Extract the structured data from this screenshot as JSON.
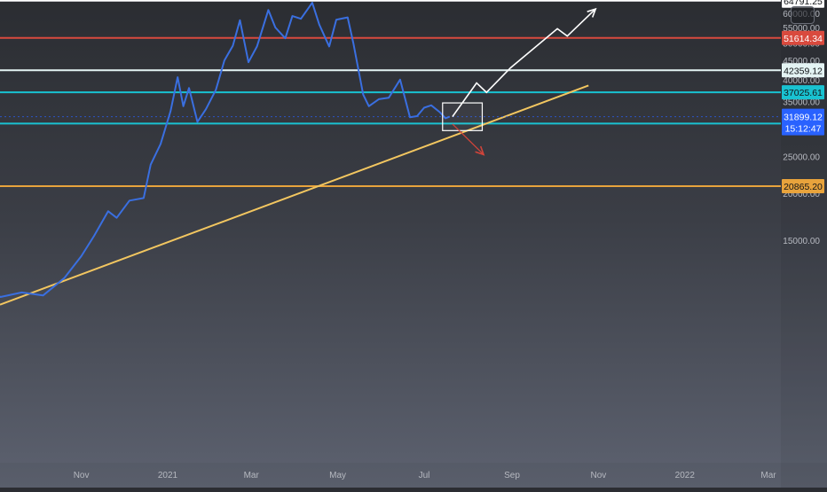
{
  "chart_data": {
    "type": "line",
    "series": [
      {
        "color": "#3a6fe0",
        "points": [
          [
            "2020-08-25",
            11200
          ],
          [
            "2020-09-05",
            10600
          ],
          [
            "2020-09-20",
            10900
          ],
          [
            "2020-10-05",
            10700
          ],
          [
            "2020-10-20",
            11900
          ],
          [
            "2020-11-01",
            13600
          ],
          [
            "2020-11-10",
            15400
          ],
          [
            "2020-11-20",
            17900
          ],
          [
            "2020-11-26",
            17200
          ],
          [
            "2020-12-05",
            19100
          ],
          [
            "2020-12-15",
            19400
          ],
          [
            "2020-12-20",
            23800
          ],
          [
            "2020-12-27",
            27000
          ],
          [
            "2021-01-03",
            33000
          ],
          [
            "2021-01-08",
            40600
          ],
          [
            "2021-01-12",
            34000
          ],
          [
            "2021-01-16",
            38000
          ],
          [
            "2021-01-22",
            30900
          ],
          [
            "2021-01-28",
            33400
          ],
          [
            "2021-02-04",
            37600
          ],
          [
            "2021-02-10",
            45000
          ],
          [
            "2021-02-16",
            49200
          ],
          [
            "2021-02-21",
            57500
          ],
          [
            "2021-02-27",
            44500
          ],
          [
            "2021-03-05",
            49000
          ],
          [
            "2021-03-13",
            61200
          ],
          [
            "2021-03-18",
            55000
          ],
          [
            "2021-03-25",
            51500
          ],
          [
            "2021-03-30",
            59000
          ],
          [
            "2021-04-05",
            58000
          ],
          [
            "2021-04-13",
            64000
          ],
          [
            "2021-04-18",
            56000
          ],
          [
            "2021-04-25",
            49000
          ],
          [
            "2021-04-30",
            57700
          ],
          [
            "2021-05-08",
            58500
          ],
          [
            "2021-05-12",
            50000
          ],
          [
            "2021-05-19",
            36500
          ],
          [
            "2021-05-23",
            34000
          ],
          [
            "2021-05-30",
            35500
          ],
          [
            "2021-06-06",
            35800
          ],
          [
            "2021-06-14",
            40000
          ],
          [
            "2021-06-21",
            31800
          ],
          [
            "2021-06-26",
            32000
          ],
          [
            "2021-07-01",
            33700
          ],
          [
            "2021-07-06",
            34200
          ],
          [
            "2021-07-12",
            32800
          ],
          [
            "2021-07-16",
            31600
          ],
          [
            "2021-07-19",
            31899.12
          ]
        ]
      }
    ],
    "horizontal_levels": [
      {
        "value": 64791.25,
        "label": "64791.25",
        "color": "#ffffff"
      },
      {
        "value": 51614.34,
        "label": "51614.34",
        "color": "#d94a3e"
      },
      {
        "value": 42359.12,
        "label": "42359.12",
        "color": "#e4f4f4"
      },
      {
        "value": 37025.61,
        "label": "37025.61",
        "color": "#19c2d1"
      },
      {
        "value": 30594.02,
        "label": "30594.02",
        "color": "#19c2d1"
      },
      {
        "value": 20865.2,
        "label": "20865.20",
        "color": "#e8a33c"
      }
    ],
    "last_price": {
      "value": "31899.12",
      "countdown": "15:12:47",
      "color": "#2962ff"
    },
    "trendline": {
      "from": [
        "2020-09-25",
        10800
      ],
      "to": [
        "2021-10-25",
        38600
      ],
      "color": "#f2c660"
    },
    "projection": {
      "color": "#ffffff",
      "points": [
        [
          "2021-07-21",
          31900
        ],
        [
          "2021-08-07",
          39200
        ],
        [
          "2021-08-14",
          37000
        ],
        [
          "2021-08-31",
          43000
        ],
        [
          "2021-10-03",
          54600
        ],
        [
          "2021-10-10",
          52200
        ],
        [
          "2021-10-30",
          61600
        ]
      ]
    },
    "down_arrow": {
      "color": "#d0443a",
      "from": [
        "2021-07-21",
        30500
      ],
      "to": [
        "2021-08-12",
        25300
      ]
    },
    "box": {
      "x0": "2021-07-14",
      "x1": "2021-08-11",
      "y0": 29300,
      "y1": 34700
    },
    "y_axis": {
      "ticks": [
        15000,
        20000,
        25000,
        30000,
        35000,
        40000,
        45000,
        50000,
        55000,
        60000
      ],
      "format": "0.00",
      "scale": "log"
    },
    "x_axis": {
      "ticks": [
        {
          "date": "2020-11-01",
          "label": "Nov"
        },
        {
          "date": "2021-01-01",
          "label": "2021"
        },
        {
          "date": "2021-03-01",
          "label": "Mar"
        },
        {
          "date": "2021-05-01",
          "label": "May"
        },
        {
          "date": "2021-07-01",
          "label": "Jul"
        },
        {
          "date": "2021-09-01",
          "label": "Sep"
        },
        {
          "date": "2021-11-01",
          "label": "Nov"
        },
        {
          "date": "2022-01-01",
          "label": "2022"
        },
        {
          "date": "2022-03-01",
          "label": "Mar"
        }
      ]
    },
    "title": "",
    "xlabel": "",
    "ylabel": ""
  }
}
